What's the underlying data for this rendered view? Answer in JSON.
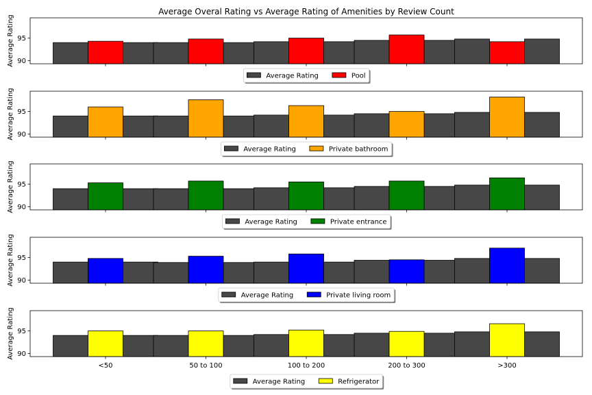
{
  "chart_data": {
    "type": "bar",
    "title": "Average Overal Rating vs Average Rating of Amenities by Review Count",
    "categories": [
      "<50",
      "50 to 100",
      "100 to 200",
      "200 to 300",
      ">300"
    ],
    "ylabel": "Average Rating",
    "yticks": [
      90,
      95
    ],
    "ylim": [
      89.3,
      99.5
    ],
    "grid": false,
    "legend_placement": "bottom-center, below each panel",
    "base_color": "#474747",
    "subplots": [
      {
        "amenity": "Pool",
        "color": "#ff0000",
        "series": [
          {
            "name": "Average Rating",
            "values": [
              [
                94.0,
                94.0
              ],
              [
                94.0,
                94.0
              ],
              [
                94.2,
                94.2
              ],
              [
                94.5,
                94.5
              ],
              [
                94.8,
                94.8
              ]
            ]
          },
          {
            "name": "Pool",
            "values": [
              94.3,
              94.8,
              95.0,
              95.7,
              94.2
            ]
          }
        ]
      },
      {
        "amenity": "Private bathroom",
        "color": "#ffa500",
        "series": [
          {
            "name": "Average Rating",
            "values": [
              [
                94.0,
                94.0
              ],
              [
                94.0,
                94.0
              ],
              [
                94.2,
                94.2
              ],
              [
                94.5,
                94.5
              ],
              [
                94.8,
                94.8
              ]
            ]
          },
          {
            "name": "Private bathroom",
            "values": [
              96.0,
              97.6,
              96.3,
              95.0,
              98.2
            ]
          }
        ]
      },
      {
        "amenity": "Private entrance",
        "color": "#008000",
        "series": [
          {
            "name": "Average Rating",
            "values": [
              [
                94.0,
                94.0
              ],
              [
                94.0,
                94.0
              ],
              [
                94.2,
                94.2
              ],
              [
                94.5,
                94.5
              ],
              [
                94.8,
                94.8
              ]
            ]
          },
          {
            "name": "Private entrance",
            "values": [
              95.3,
              95.7,
              95.5,
              95.7,
              96.4
            ]
          }
        ]
      },
      {
        "amenity": "Private living room",
        "color": "#0000ff",
        "series": [
          {
            "name": "Average Rating",
            "values": [
              [
                94.0,
                94.0
              ],
              [
                93.9,
                93.9
              ],
              [
                94.0,
                94.0
              ],
              [
                94.4,
                94.4
              ],
              [
                94.8,
                94.8
              ]
            ]
          },
          {
            "name": "Private living room",
            "values": [
              94.8,
              95.3,
              95.8,
              94.5,
              97.1
            ]
          }
        ]
      },
      {
        "amenity": "Refrigerator",
        "color": "#ffff00",
        "series": [
          {
            "name": "Average Rating",
            "values": [
              [
                94.0,
                94.0
              ],
              [
                94.0,
                94.0
              ],
              [
                94.2,
                94.2
              ],
              [
                94.5,
                94.5
              ],
              [
                94.8,
                94.8
              ]
            ]
          },
          {
            "name": "Refrigerator",
            "values": [
              95.0,
              95.0,
              95.2,
              94.9,
              96.6
            ]
          }
        ]
      }
    ]
  }
}
